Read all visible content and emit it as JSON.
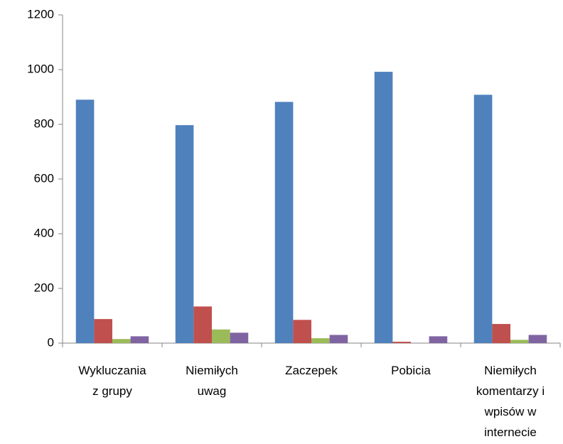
{
  "chart_data": {
    "type": "bar",
    "categories": [
      "Wykluczania z grupy",
      "Niemiłych uwag",
      "Zaczepek",
      "Pobicia",
      "Niemiłych komentarzy i wpisów w internecie"
    ],
    "series": [
      {
        "color": "#4f81bd",
        "values": [
          890,
          797,
          882,
          992,
          908
        ]
      },
      {
        "color": "#c0504d",
        "values": [
          88,
          134,
          85,
          5,
          70
        ]
      },
      {
        "color": "#9bbb59",
        "values": [
          15,
          50,
          18,
          0,
          12
        ]
      },
      {
        "color": "#8064a2",
        "values": [
          25,
          38,
          30,
          25,
          30
        ]
      }
    ],
    "ylim": [
      0,
      1200
    ],
    "yticks": [
      0,
      200,
      400,
      600,
      800,
      1000,
      1200
    ],
    "grid": false
  }
}
